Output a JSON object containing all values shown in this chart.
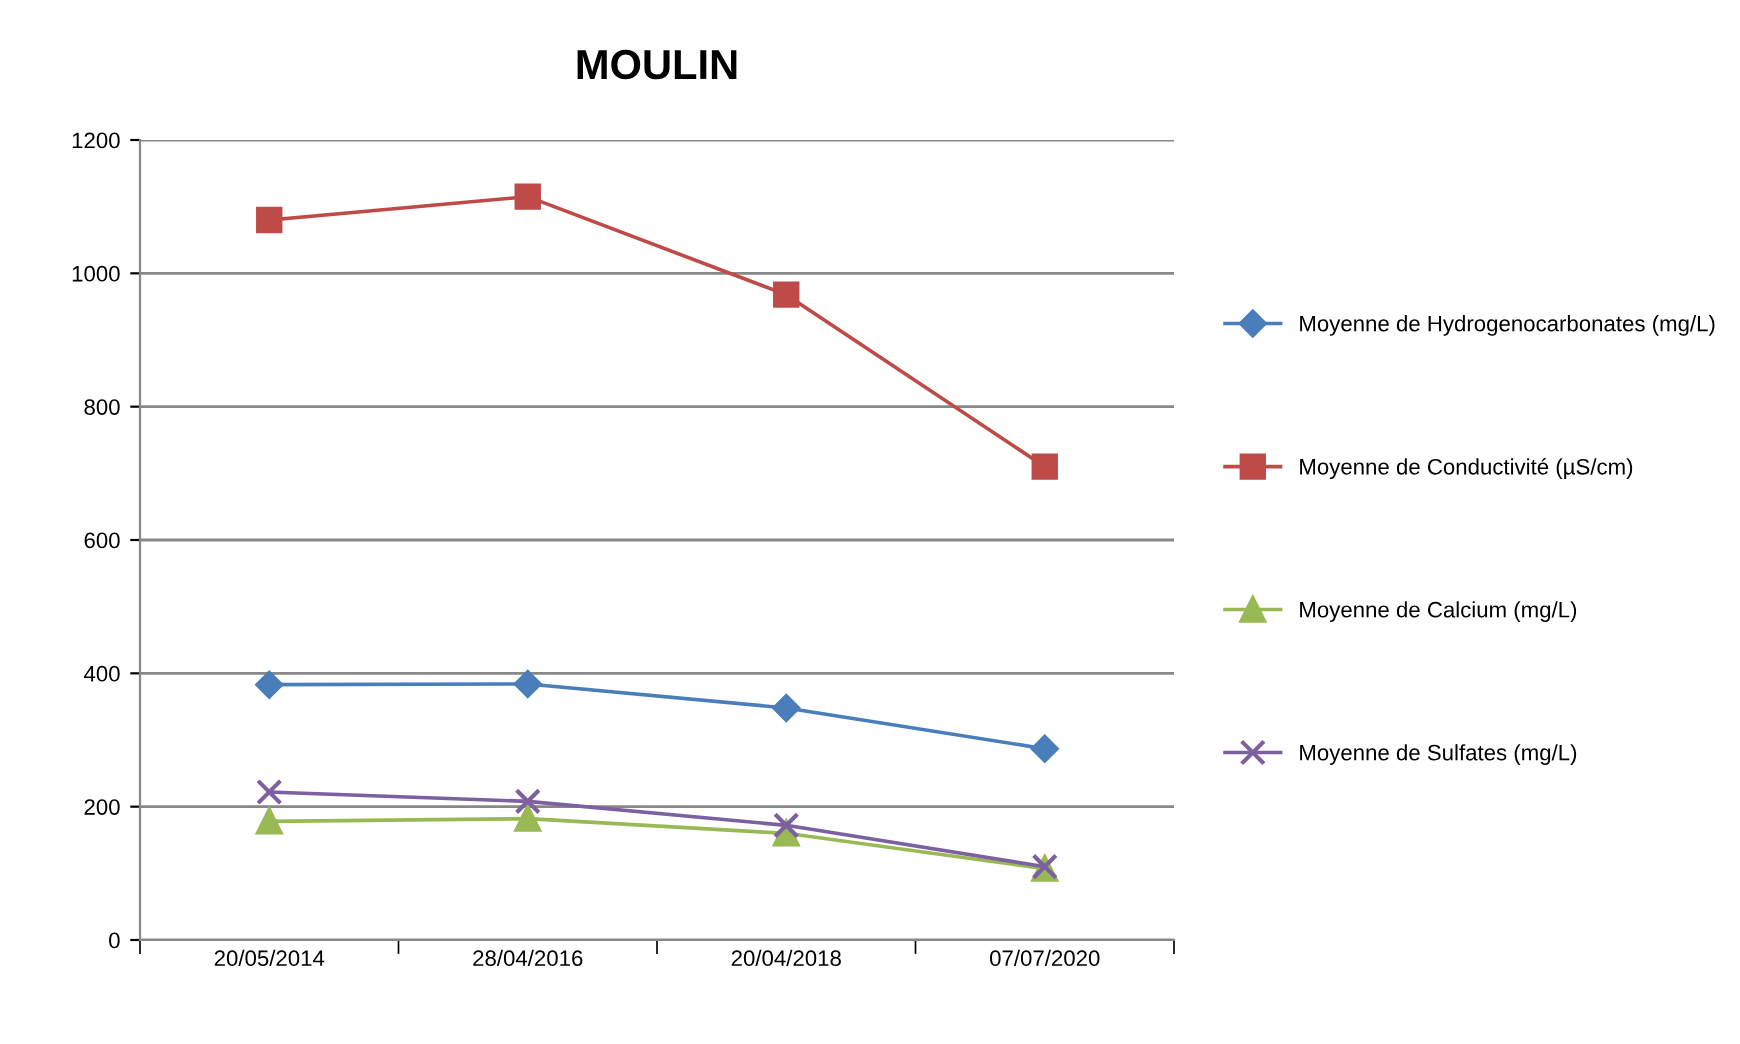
{
  "chart_data": {
    "type": "line",
    "title": "MOULIN",
    "categories": [
      "20/05/2014",
      "28/04/2016",
      "20/04/2018",
      "07/07/2020"
    ],
    "series": [
      {
        "name": "Moyenne de Hydrogenocarbonates (mg/L)",
        "color": "#4a7ebb",
        "marker": "diamond",
        "values": [
          383,
          384,
          348,
          287
        ]
      },
      {
        "name": "Moyenne de Conductivité (µS/cm)",
        "color": "#be4b48",
        "marker": "square",
        "values": [
          1080,
          1115,
          968,
          710
        ]
      },
      {
        "name": "Moyenne de Calcium (mg/L)",
        "color": "#98b954",
        "marker": "triangle",
        "values": [
          178,
          182,
          160,
          107
        ]
      },
      {
        "name": "Moyenne de Sulfates (mg/L)",
        "color": "#7d60a0",
        "marker": "cross",
        "values": [
          222,
          208,
          172,
          110
        ]
      }
    ],
    "ylim": [
      0,
      1200
    ],
    "yticks": [
      0,
      200,
      400,
      600,
      800,
      1000,
      1200
    ],
    "grid": "y",
    "legend": "right"
  }
}
